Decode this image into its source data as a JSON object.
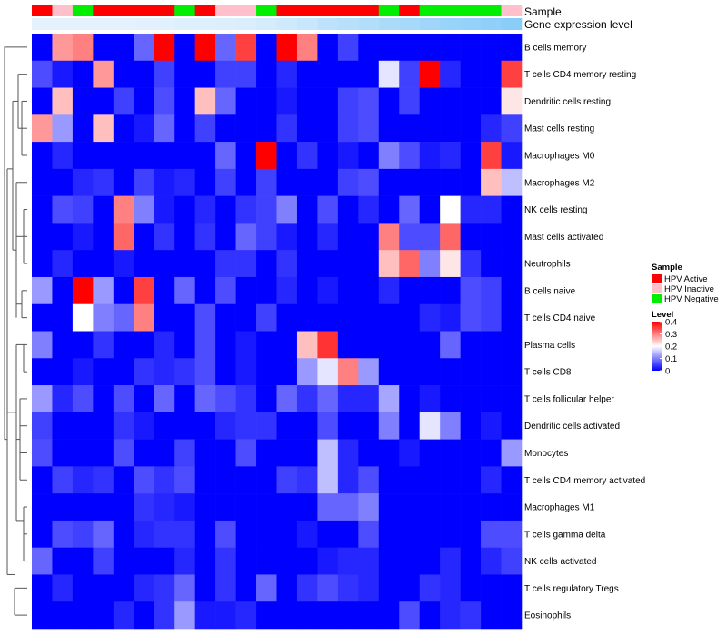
{
  "chart_data": {
    "type": "heatmap",
    "annotation_rows": [
      "Sample",
      "Gene expression level"
    ],
    "sample_groups": [
      "HPV Active",
      "HPV Inactive",
      "HPV Negative",
      "HPV Active",
      "HPV Active",
      "HPV Active",
      "HPV Active",
      "HPV Negative",
      "HPV Active",
      "HPV Inactive",
      "HPV Inactive",
      "HPV Negative",
      "HPV Active",
      "HPV Active",
      "HPV Active",
      "HPV Active",
      "HPV Active",
      "HPV Negative",
      "HPV Active",
      "HPV Negative",
      "HPV Negative",
      "HPV Negative",
      "HPV Negative",
      "HPV Inactive"
    ],
    "expression_levels": [
      0.12,
      0.12,
      0.13,
      0.13,
      0.13,
      0.14,
      0.15,
      0.16,
      0.17,
      0.18,
      0.2,
      0.25,
      0.3,
      0.35,
      0.45,
      0.5,
      0.55,
      0.6,
      0.65,
      0.7,
      0.78,
      0.8,
      0.85,
      0.9
    ],
    "rows": [
      "B cells memory",
      "T cells CD4 memory resting",
      "Dendritic cells resting",
      "Mast cells resting",
      "Macrophages M0",
      "Macrophages M2",
      "NK cells resting",
      "Mast cells activated",
      "Neutrophils",
      "B cells naive",
      "T cells CD4 naive",
      "Plasma cells",
      "T cells CD8",
      "T cells follicular helper",
      "Dendritic cells activated",
      "Monocytes",
      "T cells CD4 memory activated",
      "Macrophages M1",
      "T cells gamma delta",
      "NK cells activated",
      "T cells regulatory  Tregs",
      "Eosinophils"
    ],
    "values": [
      [
        0,
        0.28,
        0.3,
        0,
        0,
        0.08,
        0.4,
        0,
        0.4,
        0.08,
        0.35,
        0,
        0.4,
        0.3,
        0,
        0.05,
        0,
        0,
        0,
        0,
        0,
        0,
        0,
        0
      ],
      [
        0.06,
        0.02,
        0,
        0.28,
        0,
        0,
        0.05,
        0,
        0,
        0.05,
        0.05,
        0,
        0.03,
        0,
        0,
        0,
        0,
        0.18,
        0.05,
        0.4,
        0.03,
        0,
        0,
        0.35
      ],
      [
        0,
        0.25,
        0,
        0,
        0.05,
        0,
        0.06,
        0,
        0.25,
        0.08,
        0,
        0,
        0.02,
        0,
        0,
        0.05,
        0.06,
        0,
        0.05,
        0,
        0,
        0,
        0,
        0.22
      ],
      [
        0.28,
        0.12,
        0,
        0.25,
        0,
        0.02,
        0.08,
        0,
        0.05,
        0,
        0,
        0,
        0.04,
        0,
        0,
        0.05,
        0.06,
        0,
        0,
        0,
        0,
        0,
        0.03,
        0.05
      ],
      [
        0,
        0.03,
        0,
        0,
        0,
        0,
        0,
        0,
        0,
        0.08,
        0,
        0.4,
        0,
        0.04,
        0,
        0.02,
        0,
        0.1,
        0.06,
        0.02,
        0.03,
        0,
        0.35,
        0.02
      ],
      [
        0,
        0,
        0.03,
        0.04,
        0,
        0.05,
        0.02,
        0.03,
        0,
        0.05,
        0,
        0.05,
        0,
        0,
        0,
        0.05,
        0.06,
        0,
        0,
        0,
        0,
        0,
        0.25,
        0.15
      ],
      [
        0,
        0.06,
        0.05,
        0,
        0.3,
        0.1,
        0.02,
        0,
        0.03,
        0,
        0.04,
        0.05,
        0.1,
        0,
        0.06,
        0,
        0.03,
        0,
        0.08,
        0,
        0.2,
        0.03,
        0.03,
        0
      ],
      [
        0,
        0,
        0.02,
        0,
        0.32,
        0,
        0.04,
        0,
        0.04,
        0,
        0.08,
        0.05,
        0.02,
        0,
        0.03,
        0,
        0,
        0.3,
        0.06,
        0.06,
        0.32,
        0,
        0,
        0
      ],
      [
        0,
        0.03,
        0,
        0,
        0.02,
        0,
        0,
        0,
        0,
        0.04,
        0.04,
        0,
        0.04,
        0,
        0,
        0,
        0,
        0.25,
        0.32,
        0.1,
        0.22,
        0.04,
        0,
        0
      ],
      [
        0.12,
        0,
        0.4,
        0.12,
        0,
        0.35,
        0,
        0.08,
        0,
        0.06,
        0,
        0,
        0.03,
        0,
        0.02,
        0,
        0,
        0.03,
        0,
        0,
        0,
        0.06,
        0.05,
        0
      ],
      [
        0,
        0,
        0.2,
        0.1,
        0.08,
        0.3,
        0,
        0,
        0.06,
        0,
        0,
        0.05,
        0,
        0,
        0,
        0,
        0,
        0,
        0,
        0.03,
        0.02,
        0.06,
        0.05,
        0
      ],
      [
        0.1,
        0,
        0,
        0.04,
        0,
        0,
        0.03,
        0,
        0.06,
        0,
        0.02,
        0,
        0,
        0.25,
        0.36,
        0,
        0,
        0,
        0,
        0,
        0.08,
        0,
        0,
        0
      ],
      [
        0,
        0,
        0.02,
        0,
        0,
        0.04,
        0.03,
        0.04,
        0.06,
        0,
        0.02,
        0,
        0,
        0.12,
        0.18,
        0.3,
        0.12,
        0,
        0,
        0,
        0,
        0,
        0,
        0
      ],
      [
        0.12,
        0.03,
        0.06,
        0,
        0.06,
        0,
        0.08,
        0,
        0.08,
        0.06,
        0.04,
        0,
        0.08,
        0.04,
        0.08,
        0.03,
        0.03,
        0.13,
        0,
        0.02,
        0,
        0,
        0,
        0
      ],
      [
        0.05,
        0,
        0,
        0,
        0.04,
        0.02,
        0,
        0,
        0,
        0.03,
        0.04,
        0.04,
        0,
        0,
        0.06,
        0,
        0,
        0.1,
        0,
        0.18,
        0.1,
        0,
        0.02,
        0
      ],
      [
        0.06,
        0,
        0,
        0,
        0.06,
        0,
        0,
        0.05,
        0,
        0,
        0.06,
        0,
        0,
        0,
        0.15,
        0.03,
        0,
        0,
        0.02,
        0,
        0,
        0,
        0,
        0.12
      ],
      [
        0,
        0.05,
        0.03,
        0.04,
        0,
        0.06,
        0.04,
        0.06,
        0,
        0,
        0,
        0,
        0.05,
        0.04,
        0.15,
        0.03,
        0.06,
        0,
        0,
        0,
        0,
        0,
        0.03,
        0
      ],
      [
        0,
        0,
        0,
        0,
        0,
        0.04,
        0.03,
        0.02,
        0,
        0,
        0,
        0,
        0,
        0,
        0.08,
        0.08,
        0.1,
        0,
        0,
        0,
        0,
        0,
        0,
        0
      ],
      [
        0,
        0.06,
        0.05,
        0.08,
        0,
        0.03,
        0.04,
        0.04,
        0,
        0.06,
        0,
        0,
        0,
        0.02,
        0,
        0,
        0.06,
        0,
        0,
        0,
        0,
        0,
        0.06,
        0.06
      ],
      [
        0.08,
        0,
        0,
        0.05,
        0,
        0,
        0,
        0.03,
        0,
        0.04,
        0,
        0,
        0,
        0,
        0.02,
        0.03,
        0.03,
        0,
        0,
        0,
        0.03,
        0,
        0.03,
        0.05
      ],
      [
        0,
        0.03,
        0,
        0,
        0,
        0.03,
        0.04,
        0.08,
        0,
        0.04,
        0,
        0.08,
        0,
        0.04,
        0.06,
        0.04,
        0.03,
        0,
        0,
        0.04,
        0.03,
        0,
        0,
        0
      ],
      [
        0,
        0,
        0,
        0,
        0.03,
        0,
        0.04,
        0.12,
        0.02,
        0.02,
        0.03,
        0,
        0,
        0,
        0,
        0,
        0,
        0,
        0.06,
        0,
        0.03,
        0.04,
        0,
        0
      ]
    ],
    "legend": {
      "sample_title": "Sample",
      "sample_entries": [
        {
          "label": "HPV Active",
          "color": "#ff0000"
        },
        {
          "label": "HPV Inactive",
          "color": "#ffc0cb"
        },
        {
          "label": "HPV Negative",
          "color": "#00ee00"
        }
      ],
      "level_title": "Level",
      "level_ticks": [
        "0.4",
        "0.3",
        "0.2",
        "0.1",
        "0"
      ],
      "level_tick_values": [
        0.4,
        0.3,
        0.2,
        0.1,
        0
      ],
      "level_range": [
        0,
        0.4
      ],
      "placement": "right"
    },
    "colors": {
      "low": "#0000ff",
      "mid": "#ffffff",
      "high": "#ff0000",
      "expr_low": "#f2f8fe",
      "expr_high": "#7ec8f8"
    }
  }
}
